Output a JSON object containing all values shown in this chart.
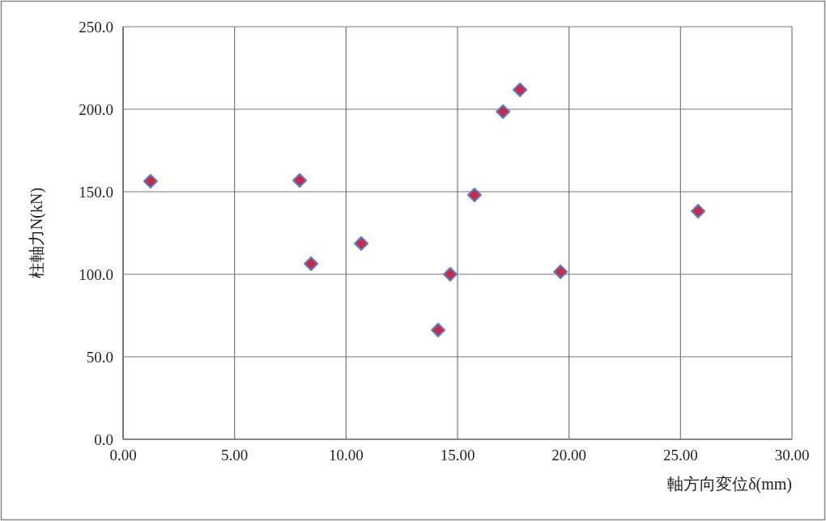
{
  "chart_data": {
    "type": "scatter",
    "xlabel": "軸方向変位δ(mm)",
    "ylabel": "柱軸力N(kN)",
    "x": [
      1.23,
      7.92,
      8.43,
      10.68,
      14.13,
      14.67,
      15.76,
      17.04,
      17.8,
      19.62,
      25.79
    ],
    "values": [
      156.4,
      156.9,
      106.4,
      118.6,
      66.2,
      100.0,
      148.0,
      198.5,
      211.8,
      101.5,
      138.2
    ],
    "color": "#c8284a",
    "marker": "diamond",
    "grid": true,
    "xlim": [
      0,
      30
    ],
    "ylim": [
      0,
      250
    ],
    "xticks": [
      {
        "value": 0,
        "label": "0.00"
      },
      {
        "value": 5,
        "label": "5.00"
      },
      {
        "value": 10,
        "label": "10.00"
      },
      {
        "value": 15,
        "label": "15.00"
      },
      {
        "value": 20,
        "label": "20.00"
      },
      {
        "value": 25,
        "label": "25.00"
      },
      {
        "value": 30,
        "label": "30.00"
      }
    ],
    "yticks": [
      {
        "value": 0,
        "label": "0.0"
      },
      {
        "value": 50,
        "label": "50.0"
      },
      {
        "value": 100,
        "label": "100.0"
      },
      {
        "value": 150,
        "label": "150.0"
      },
      {
        "value": 200,
        "label": "200.0"
      },
      {
        "value": 250,
        "label": "250.0"
      }
    ]
  }
}
